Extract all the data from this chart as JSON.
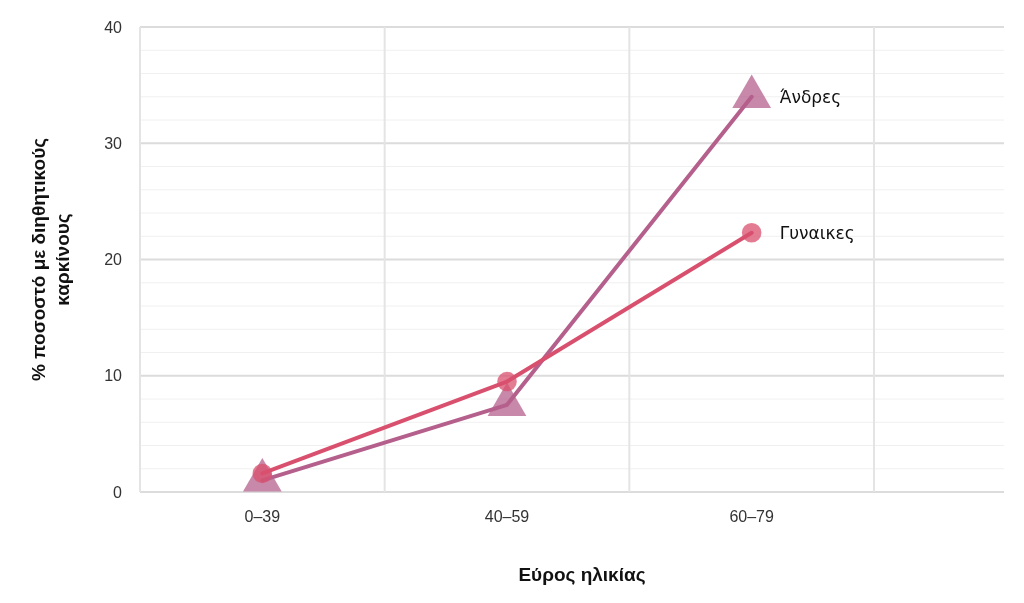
{
  "chart_data": {
    "type": "line",
    "xlabel": "Εύρος ηλικίας",
    "ylabel": "% ποσοστό με διηθητικούς καρκίνους",
    "categories": [
      "0–39",
      "40–59",
      "60–79"
    ],
    "series": [
      {
        "name": "Άνδρες",
        "color": "#b5608c",
        "marker": "triangle",
        "values": [
          1,
          7.5,
          34
        ]
      },
      {
        "name": "Γυναικες",
        "color": "#d9506e",
        "marker": "circle",
        "values": [
          1.6,
          9.5,
          22.3
        ]
      }
    ],
    "ylim": [
      0,
      40
    ],
    "yticks": [
      0,
      10,
      20,
      30,
      40
    ],
    "grid": true,
    "line_style": "solid"
  }
}
